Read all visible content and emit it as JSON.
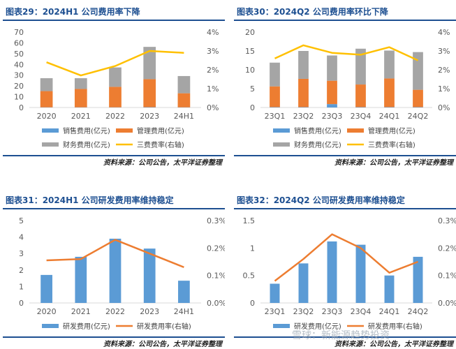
{
  "watermark": "雪球：新能源趋势投资",
  "chart_data": [
    {
      "type": "bar",
      "title": "图表29：2024H1 公司费用率下降",
      "source": "资料来源：公司公告，太平洋证券整理",
      "categories": [
        "2020",
        "2021",
        "2022",
        "2023",
        "24H1"
      ],
      "stacked": true,
      "ylim": [
        0,
        70
      ],
      "yticks": [
        0,
        10,
        20,
        30,
        40,
        50,
        60,
        70
      ],
      "y2lim": [
        0,
        4
      ],
      "y2ticks": [
        "0%",
        "1%",
        "2%",
        "3%",
        "4%"
      ],
      "series": [
        {
          "name": "销售费用(亿元)",
          "values": [
            0.2,
            0.2,
            0.2,
            0.3,
            0.2
          ],
          "color": "#5b9bd5",
          "axis": "left",
          "kind": "bar"
        },
        {
          "name": "管理费用(亿元)",
          "values": [
            15,
            17,
            19,
            26,
            13
          ],
          "color": "#ed7d31",
          "axis": "left",
          "kind": "bar"
        },
        {
          "name": "财务费用(亿元)",
          "values": [
            12,
            10,
            18,
            30,
            16
          ],
          "color": "#a5a5a5",
          "axis": "left",
          "kind": "bar"
        },
        {
          "name": "三费费率(右轴)",
          "values": [
            2.4,
            1.7,
            2.2,
            3.0,
            2.9
          ],
          "color": "#ffc000",
          "axis": "right",
          "kind": "line"
        }
      ],
      "legend_rows": [
        [
          0,
          1
        ],
        [
          2,
          3
        ]
      ]
    },
    {
      "type": "bar",
      "title": "图表30：2024Q2 公司费用率环比下降",
      "source": "资料来源：公司公告，太平洋证券整理",
      "categories": [
        "23Q1",
        "23Q2",
        "23Q3",
        "23Q4",
        "24Q1",
        "24Q2"
      ],
      "stacked": true,
      "ylim": [
        0,
        20
      ],
      "yticks": [
        0,
        5,
        10,
        15,
        20
      ],
      "y2lim": [
        0,
        4
      ],
      "y2ticks": [
        "0%",
        "1%",
        "2%",
        "3%",
        "4%"
      ],
      "series": [
        {
          "name": "销售费用(亿元)",
          "values": [
            0.1,
            0.1,
            0.9,
            0.1,
            0.1,
            0.1
          ],
          "color": "#5b9bd5",
          "axis": "left",
          "kind": "bar"
        },
        {
          "name": "管理费用(亿元)",
          "values": [
            5.5,
            7.5,
            6.2,
            6.0,
            7.6,
            4.6
          ],
          "color": "#ed7d31",
          "axis": "left",
          "kind": "bar"
        },
        {
          "name": "财务费用(亿元)",
          "values": [
            6.3,
            7.4,
            6.7,
            9.5,
            7.4,
            10.0
          ],
          "color": "#a5a5a5",
          "axis": "left",
          "kind": "bar"
        },
        {
          "name": "三费费率(右轴)",
          "values": [
            2.6,
            3.3,
            2.9,
            2.8,
            3.2,
            2.5
          ],
          "color": "#ffc000",
          "axis": "right",
          "kind": "line"
        }
      ],
      "legend_rows": [
        [
          0,
          1
        ],
        [
          2,
          3
        ]
      ]
    },
    {
      "type": "bar",
      "title": "图表31：2024H1 公司研发费用率维持稳定",
      "source": "资料来源：公司公告，太平洋证券整理",
      "categories": [
        "2020",
        "2021",
        "2022",
        "2023",
        "24H1"
      ],
      "stacked": false,
      "ylim": [
        0,
        5
      ],
      "yticks": [
        0,
        1,
        2,
        3,
        4,
        5
      ],
      "y2lim": [
        0,
        0.3
      ],
      "y2ticks": [
        "0.0%",
        "0.1%",
        "0.2%",
        "0.3%"
      ],
      "series": [
        {
          "name": "研发费用(亿元)",
          "values": [
            1.7,
            2.8,
            3.9,
            3.3,
            1.35
          ],
          "color": "#5b9bd5",
          "axis": "left",
          "kind": "bar"
        },
        {
          "name": "研发费用率(右轴)",
          "values": [
            0.155,
            0.16,
            0.23,
            0.18,
            0.13
          ],
          "color": "#ed7d31",
          "axis": "right",
          "kind": "line"
        }
      ],
      "legend_rows": [
        [
          0,
          1
        ]
      ]
    },
    {
      "type": "bar",
      "title": "图表32：2024Q2 公司研发费用率维持稳定",
      "source": "资料来源：公司公告，太平洋证券整理",
      "categories": [
        "23Q1",
        "23Q2",
        "23Q3",
        "23Q4",
        "24Q1",
        "24Q2"
      ],
      "stacked": false,
      "ylim": [
        0,
        1.5
      ],
      "yticks": [
        0,
        0.5,
        1,
        1.5
      ],
      "y2lim": [
        0,
        0.3
      ],
      "y2ticks": [
        "0.0%",
        "0.1%",
        "0.2%",
        "0.3%"
      ],
      "series": [
        {
          "name": "研发费用(亿元)",
          "values": [
            0.35,
            0.72,
            1.12,
            1.06,
            0.5,
            0.84
          ],
          "color": "#5b9bd5",
          "axis": "left",
          "kind": "bar"
        },
        {
          "name": "研发费用率(右轴)",
          "values": [
            0.08,
            0.16,
            0.25,
            0.2,
            0.11,
            0.15
          ],
          "color": "#ed7d31",
          "axis": "right",
          "kind": "line"
        }
      ],
      "legend_rows": [
        [
          0,
          1
        ]
      ]
    }
  ]
}
